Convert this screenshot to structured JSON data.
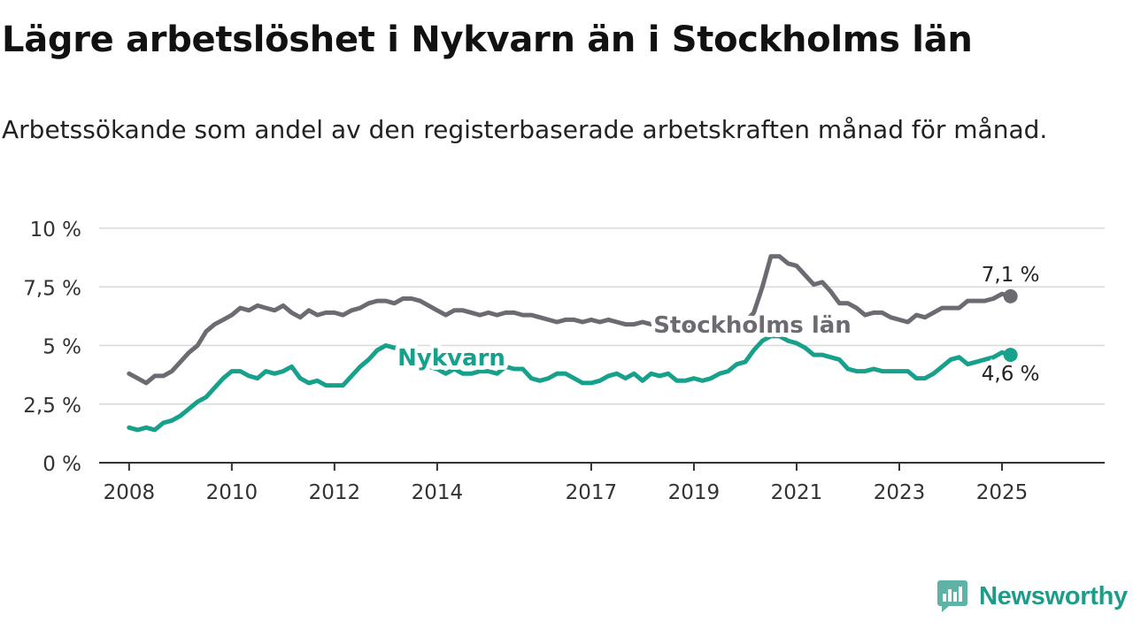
{
  "header": {
    "title": "Lägre arbetslöshet i Nykvarn än i Stockholms län",
    "subtitle": "Arbetssökande som andel av den registerbaserade arbetskraften månad för månad."
  },
  "brand": {
    "name": "Newsworthy",
    "color": "#1e9c8a"
  },
  "chart_data": {
    "type": "line",
    "x_start": "2008-01",
    "x_end": "2025-03",
    "xlim": [
      "2007-06",
      "2027-01"
    ],
    "ylim": [
      0,
      10
    ],
    "grid": true,
    "x_ticks": [
      "2008",
      "2010",
      "2012",
      "2014",
      "2017",
      "2019",
      "2021",
      "2023",
      "2025"
    ],
    "y_ticks": [
      {
        "value": 0,
        "label": "0 %"
      },
      {
        "value": 2.5,
        "label": "2,5 %"
      },
      {
        "value": 5,
        "label": "5 %"
      },
      {
        "value": 7.5,
        "label": "7,5 %"
      },
      {
        "value": 10,
        "label": "10 %"
      }
    ],
    "series": [
      {
        "name": "Stockholms län",
        "color": "#6d6b72",
        "end_label": "7,1 %",
        "points": [
          [
            "2008-01",
            3.8
          ],
          [
            "2008-03",
            3.6
          ],
          [
            "2008-05",
            3.4
          ],
          [
            "2008-07",
            3.7
          ],
          [
            "2008-09",
            3.7
          ],
          [
            "2008-11",
            3.9
          ],
          [
            "2009-01",
            4.3
          ],
          [
            "2009-03",
            4.7
          ],
          [
            "2009-05",
            5.0
          ],
          [
            "2009-07",
            5.6
          ],
          [
            "2009-09",
            5.9
          ],
          [
            "2009-11",
            6.1
          ],
          [
            "2010-01",
            6.3
          ],
          [
            "2010-03",
            6.6
          ],
          [
            "2010-05",
            6.5
          ],
          [
            "2010-07",
            6.7
          ],
          [
            "2010-09",
            6.6
          ],
          [
            "2010-11",
            6.5
          ],
          [
            "2011-01",
            6.7
          ],
          [
            "2011-03",
            6.4
          ],
          [
            "2011-05",
            6.2
          ],
          [
            "2011-07",
            6.5
          ],
          [
            "2011-09",
            6.3
          ],
          [
            "2011-11",
            6.4
          ],
          [
            "2012-01",
            6.4
          ],
          [
            "2012-03",
            6.3
          ],
          [
            "2012-05",
            6.5
          ],
          [
            "2012-07",
            6.6
          ],
          [
            "2012-09",
            6.8
          ],
          [
            "2012-11",
            6.9
          ],
          [
            "2013-01",
            6.9
          ],
          [
            "2013-03",
            6.8
          ],
          [
            "2013-05",
            7.0
          ],
          [
            "2013-07",
            7.0
          ],
          [
            "2013-09",
            6.9
          ],
          [
            "2013-11",
            6.7
          ],
          [
            "2014-01",
            6.5
          ],
          [
            "2014-03",
            6.3
          ],
          [
            "2014-05",
            6.5
          ],
          [
            "2014-07",
            6.5
          ],
          [
            "2014-09",
            6.4
          ],
          [
            "2014-11",
            6.3
          ],
          [
            "2015-01",
            6.4
          ],
          [
            "2015-03",
            6.3
          ],
          [
            "2015-05",
            6.4
          ],
          [
            "2015-07",
            6.4
          ],
          [
            "2015-09",
            6.3
          ],
          [
            "2015-11",
            6.3
          ],
          [
            "2016-01",
            6.2
          ],
          [
            "2016-03",
            6.1
          ],
          [
            "2016-05",
            6.0
          ],
          [
            "2016-07",
            6.1
          ],
          [
            "2016-09",
            6.1
          ],
          [
            "2016-11",
            6.0
          ],
          [
            "2017-01",
            6.1
          ],
          [
            "2017-03",
            6.0
          ],
          [
            "2017-05",
            6.1
          ],
          [
            "2017-07",
            6.0
          ],
          [
            "2017-09",
            5.9
          ],
          [
            "2017-11",
            5.9
          ],
          [
            "2018-01",
            6.0
          ],
          [
            "2018-03",
            5.9
          ],
          [
            "2018-05",
            5.9
          ],
          [
            "2018-07",
            5.9
          ],
          [
            "2018-09",
            5.8
          ],
          [
            "2018-11",
            5.8
          ],
          [
            "2019-01",
            5.9
          ],
          [
            "2019-03",
            5.8
          ],
          [
            "2019-05",
            5.8
          ],
          [
            "2019-07",
            5.8
          ],
          [
            "2019-09",
            5.8
          ],
          [
            "2019-11",
            5.9
          ],
          [
            "2020-01",
            6.0
          ],
          [
            "2020-03",
            6.4
          ],
          [
            "2020-05",
            7.5
          ],
          [
            "2020-07",
            8.8
          ],
          [
            "2020-09",
            8.8
          ],
          [
            "2020-11",
            8.5
          ],
          [
            "2021-01",
            8.4
          ],
          [
            "2021-03",
            8.0
          ],
          [
            "2021-05",
            7.6
          ],
          [
            "2021-07",
            7.7
          ],
          [
            "2021-09",
            7.3
          ],
          [
            "2021-11",
            6.8
          ],
          [
            "2022-01",
            6.8
          ],
          [
            "2022-03",
            6.6
          ],
          [
            "2022-05",
            6.3
          ],
          [
            "2022-07",
            6.4
          ],
          [
            "2022-09",
            6.4
          ],
          [
            "2022-11",
            6.2
          ],
          [
            "2023-01",
            6.1
          ],
          [
            "2023-03",
            6.0
          ],
          [
            "2023-05",
            6.3
          ],
          [
            "2023-07",
            6.2
          ],
          [
            "2023-09",
            6.4
          ],
          [
            "2023-11",
            6.6
          ],
          [
            "2024-01",
            6.6
          ],
          [
            "2024-03",
            6.6
          ],
          [
            "2024-05",
            6.9
          ],
          [
            "2024-07",
            6.9
          ],
          [
            "2024-09",
            6.9
          ],
          [
            "2024-11",
            7.0
          ],
          [
            "2025-01",
            7.2
          ],
          [
            "2025-03",
            7.1
          ]
        ]
      },
      {
        "name": "Nykvarn",
        "color": "#17a08b",
        "end_label": "4,6 %",
        "points": [
          [
            "2008-01",
            1.5
          ],
          [
            "2008-03",
            1.4
          ],
          [
            "2008-05",
            1.5
          ],
          [
            "2008-07",
            1.4
          ],
          [
            "2008-09",
            1.7
          ],
          [
            "2008-11",
            1.8
          ],
          [
            "2009-01",
            2.0
          ],
          [
            "2009-03",
            2.3
          ],
          [
            "2009-05",
            2.6
          ],
          [
            "2009-07",
            2.8
          ],
          [
            "2009-09",
            3.2
          ],
          [
            "2009-11",
            3.6
          ],
          [
            "2010-01",
            3.9
          ],
          [
            "2010-03",
            3.9
          ],
          [
            "2010-05",
            3.7
          ],
          [
            "2010-07",
            3.6
          ],
          [
            "2010-09",
            3.9
          ],
          [
            "2010-11",
            3.8
          ],
          [
            "2011-01",
            3.9
          ],
          [
            "2011-03",
            4.1
          ],
          [
            "2011-05",
            3.6
          ],
          [
            "2011-07",
            3.4
          ],
          [
            "2011-09",
            3.5
          ],
          [
            "2011-11",
            3.3
          ],
          [
            "2012-01",
            3.3
          ],
          [
            "2012-03",
            3.3
          ],
          [
            "2012-05",
            3.7
          ],
          [
            "2012-07",
            4.1
          ],
          [
            "2012-09",
            4.4
          ],
          [
            "2012-11",
            4.8
          ],
          [
            "2013-01",
            5.0
          ],
          [
            "2013-03",
            4.9
          ],
          [
            "2013-05",
            4.9
          ],
          [
            "2013-07",
            4.7
          ],
          [
            "2013-09",
            4.4
          ],
          [
            "2013-11",
            4.1
          ],
          [
            "2014-01",
            4.0
          ],
          [
            "2014-03",
            3.8
          ],
          [
            "2014-05",
            4.0
          ],
          [
            "2014-07",
            3.8
          ],
          [
            "2014-09",
            3.8
          ],
          [
            "2014-11",
            3.9
          ],
          [
            "2015-01",
            3.9
          ],
          [
            "2015-03",
            3.8
          ],
          [
            "2015-05",
            4.1
          ],
          [
            "2015-07",
            4.0
          ],
          [
            "2015-09",
            4.0
          ],
          [
            "2015-11",
            3.6
          ],
          [
            "2016-01",
            3.5
          ],
          [
            "2016-03",
            3.6
          ],
          [
            "2016-05",
            3.8
          ],
          [
            "2016-07",
            3.8
          ],
          [
            "2016-09",
            3.6
          ],
          [
            "2016-11",
            3.4
          ],
          [
            "2017-01",
            3.4
          ],
          [
            "2017-03",
            3.5
          ],
          [
            "2017-05",
            3.7
          ],
          [
            "2017-07",
            3.8
          ],
          [
            "2017-09",
            3.6
          ],
          [
            "2017-11",
            3.8
          ],
          [
            "2018-01",
            3.5
          ],
          [
            "2018-03",
            3.8
          ],
          [
            "2018-05",
            3.7
          ],
          [
            "2018-07",
            3.8
          ],
          [
            "2018-09",
            3.5
          ],
          [
            "2018-11",
            3.5
          ],
          [
            "2019-01",
            3.6
          ],
          [
            "2019-03",
            3.5
          ],
          [
            "2019-05",
            3.6
          ],
          [
            "2019-07",
            3.8
          ],
          [
            "2019-09",
            3.9
          ],
          [
            "2019-11",
            4.2
          ],
          [
            "2020-01",
            4.3
          ],
          [
            "2020-03",
            4.8
          ],
          [
            "2020-05",
            5.2
          ],
          [
            "2020-07",
            5.4
          ],
          [
            "2020-09",
            5.4
          ],
          [
            "2020-11",
            5.2
          ],
          [
            "2021-01",
            5.1
          ],
          [
            "2021-03",
            4.9
          ],
          [
            "2021-05",
            4.6
          ],
          [
            "2021-07",
            4.6
          ],
          [
            "2021-09",
            4.5
          ],
          [
            "2021-11",
            4.4
          ],
          [
            "2022-01",
            4.0
          ],
          [
            "2022-03",
            3.9
          ],
          [
            "2022-05",
            3.9
          ],
          [
            "2022-07",
            4.0
          ],
          [
            "2022-09",
            3.9
          ],
          [
            "2022-11",
            3.9
          ],
          [
            "2023-01",
            3.9
          ],
          [
            "2023-03",
            3.9
          ],
          [
            "2023-05",
            3.6
          ],
          [
            "2023-07",
            3.6
          ],
          [
            "2023-09",
            3.8
          ],
          [
            "2023-11",
            4.1
          ],
          [
            "2024-01",
            4.4
          ],
          [
            "2024-03",
            4.5
          ],
          [
            "2024-05",
            4.2
          ],
          [
            "2024-07",
            4.3
          ],
          [
            "2024-09",
            4.4
          ],
          [
            "2024-11",
            4.5
          ],
          [
            "2025-01",
            4.7
          ],
          [
            "2025-03",
            4.6
          ]
        ]
      }
    ]
  }
}
